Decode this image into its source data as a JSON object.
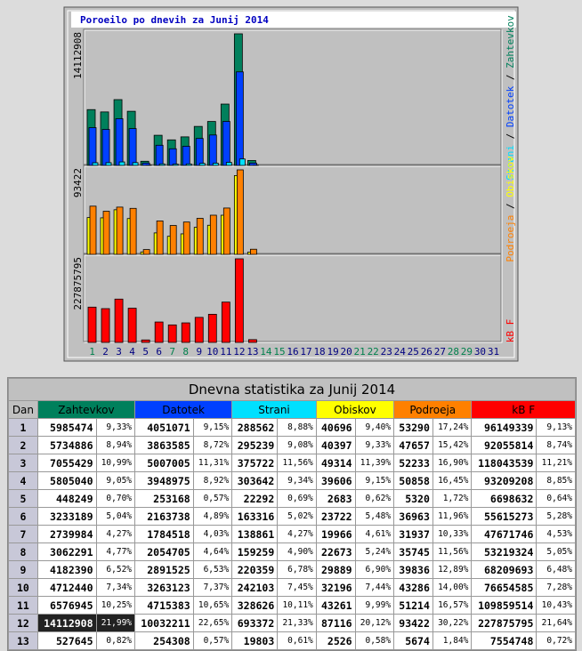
{
  "chart": {
    "title": "Poroeilo po dnevih za Junij 2014",
    "days": [
      1,
      2,
      3,
      4,
      5,
      6,
      7,
      8,
      9,
      10,
      11,
      12,
      13,
      14,
      15,
      16,
      17,
      18,
      19,
      20,
      21,
      22,
      23,
      24,
      25,
      26,
      27,
      28,
      29,
      30,
      31
    ],
    "weekend": [
      true,
      false,
      false,
      false,
      false,
      false,
      true,
      true,
      false,
      false,
      false,
      false,
      false,
      true,
      true,
      false,
      false,
      false,
      false,
      false,
      true,
      true,
      false,
      false,
      false,
      false,
      false,
      true,
      true,
      false,
      false
    ],
    "weekday_color": "#000080",
    "weekend_color": "#00804c",
    "panel_max": [
      14112908,
      93422,
      227875795
    ],
    "legend_separator": " / "
  },
  "table": {
    "title": "Dnevna statistika za Junij 2014",
    "day_header": "Dan",
    "columns": [
      {
        "name": "Zahtevkov",
        "color": "#00805c"
      },
      {
        "name": "Datotek",
        "color": "#0040ff"
      },
      {
        "name": "Strani",
        "color": "#00e0ff"
      },
      {
        "name": "Obiskov",
        "color": "#ffff00"
      },
      {
        "name": "Podroeja",
        "color": "#ff8000"
      },
      {
        "name": "kB F",
        "color": "#ff0000"
      }
    ],
    "rows": [
      {
        "day": 1,
        "cells": [
          {
            "value": 5985474,
            "percent": "9,33%"
          },
          {
            "value": 4051071,
            "percent": "9,15%"
          },
          {
            "value": 288562,
            "percent": "8,88%"
          },
          {
            "value": 40696,
            "percent": "9,40%"
          },
          {
            "value": 53290,
            "percent": "17,24%"
          },
          {
            "value": 96149339,
            "percent": "9,13%"
          }
        ]
      },
      {
        "day": 2,
        "cells": [
          {
            "value": 5734886,
            "percent": "8,94%"
          },
          {
            "value": 3863585,
            "percent": "8,72%"
          },
          {
            "value": 295239,
            "percent": "9,08%"
          },
          {
            "value": 40397,
            "percent": "9,33%"
          },
          {
            "value": 47657,
            "percent": "15,42%"
          },
          {
            "value": 92055814,
            "percent": "8,74%"
          }
        ]
      },
      {
        "day": 3,
        "cells": [
          {
            "value": 7055429,
            "percent": "10,99%"
          },
          {
            "value": 5007005,
            "percent": "11,31%"
          },
          {
            "value": 375722,
            "percent": "11,56%"
          },
          {
            "value": 49314,
            "percent": "11,39%"
          },
          {
            "value": 52233,
            "percent": "16,90%"
          },
          {
            "value": 118043539,
            "percent": "11,21%"
          }
        ]
      },
      {
        "day": 4,
        "cells": [
          {
            "value": 5805040,
            "percent": "9,05%"
          },
          {
            "value": 3948975,
            "percent": "8,92%"
          },
          {
            "value": 303642,
            "percent": "9,34%"
          },
          {
            "value": 39606,
            "percent": "9,15%"
          },
          {
            "value": 50858,
            "percent": "16,45%"
          },
          {
            "value": 93209208,
            "percent": "8,85%"
          }
        ]
      },
      {
        "day": 5,
        "cells": [
          {
            "value": 448249,
            "percent": "0,70%"
          },
          {
            "value": 253168,
            "percent": "0,57%"
          },
          {
            "value": 22292,
            "percent": "0,69%"
          },
          {
            "value": 2683,
            "percent": "0,62%"
          },
          {
            "value": 5320,
            "percent": "1,72%"
          },
          {
            "value": 6698632,
            "percent": "0,64%"
          }
        ]
      },
      {
        "day": 6,
        "cells": [
          {
            "value": 3233189,
            "percent": "5,04%"
          },
          {
            "value": 2163738,
            "percent": "4,89%"
          },
          {
            "value": 163316,
            "percent": "5,02%"
          },
          {
            "value": 23722,
            "percent": "5,48%"
          },
          {
            "value": 36963,
            "percent": "11,96%"
          },
          {
            "value": 55615273,
            "percent": "5,28%"
          }
        ]
      },
      {
        "day": 7,
        "cells": [
          {
            "value": 2739984,
            "percent": "4,27%"
          },
          {
            "value": 1784518,
            "percent": "4,03%"
          },
          {
            "value": 138861,
            "percent": "4,27%"
          },
          {
            "value": 19966,
            "percent": "4,61%"
          },
          {
            "value": 31937,
            "percent": "10,33%"
          },
          {
            "value": 47671746,
            "percent": "4,53%"
          }
        ]
      },
      {
        "day": 8,
        "cells": [
          {
            "value": 3062291,
            "percent": "4,77%"
          },
          {
            "value": 2054705,
            "percent": "4,64%"
          },
          {
            "value": 159259,
            "percent": "4,90%"
          },
          {
            "value": 22673,
            "percent": "5,24%"
          },
          {
            "value": 35745,
            "percent": "11,56%"
          },
          {
            "value": 53219324,
            "percent": "5,05%"
          }
        ]
      },
      {
        "day": 9,
        "cells": [
          {
            "value": 4182390,
            "percent": "6,52%"
          },
          {
            "value": 2891525,
            "percent": "6,53%"
          },
          {
            "value": 220359,
            "percent": "6,78%"
          },
          {
            "value": 29889,
            "percent": "6,90%"
          },
          {
            "value": 39836,
            "percent": "12,89%"
          },
          {
            "value": 68209693,
            "percent": "6,48%"
          }
        ]
      },
      {
        "day": 10,
        "cells": [
          {
            "value": 4712440,
            "percent": "7,34%"
          },
          {
            "value": 3263123,
            "percent": "7,37%"
          },
          {
            "value": 242103,
            "percent": "7,45%"
          },
          {
            "value": 32196,
            "percent": "7,44%"
          },
          {
            "value": 43286,
            "percent": "14,00%"
          },
          {
            "value": 76654585,
            "percent": "7,28%"
          }
        ]
      },
      {
        "day": 11,
        "cells": [
          {
            "value": 6576945,
            "percent": "10,25%"
          },
          {
            "value": 4715383,
            "percent": "10,65%"
          },
          {
            "value": 328626,
            "percent": "10,11%"
          },
          {
            "value": 43261,
            "percent": "9,99%"
          },
          {
            "value": 51214,
            "percent": "16,57%"
          },
          {
            "value": 109859514,
            "percent": "10,43%"
          }
        ]
      },
      {
        "day": 12,
        "cells": [
          {
            "value": 14112908,
            "percent": "21,99%",
            "highlight": true
          },
          {
            "value": 10032211,
            "percent": "22,65%"
          },
          {
            "value": 693372,
            "percent": "21,33%"
          },
          {
            "value": 87116,
            "percent": "20,12%"
          },
          {
            "value": 93422,
            "percent": "30,22%"
          },
          {
            "value": 227875795,
            "percent": "21,64%"
          }
        ]
      },
      {
        "day": 13,
        "cells": [
          {
            "value": 527645,
            "percent": "0,82%"
          },
          {
            "value": 254308,
            "percent": "0,57%"
          },
          {
            "value": 19803,
            "percent": "0,61%"
          },
          {
            "value": 2526,
            "percent": "0,58%"
          },
          {
            "value": 5674,
            "percent": "1,84%"
          },
          {
            "value": 7554748,
            "percent": "0,72%"
          }
        ]
      }
    ]
  }
}
